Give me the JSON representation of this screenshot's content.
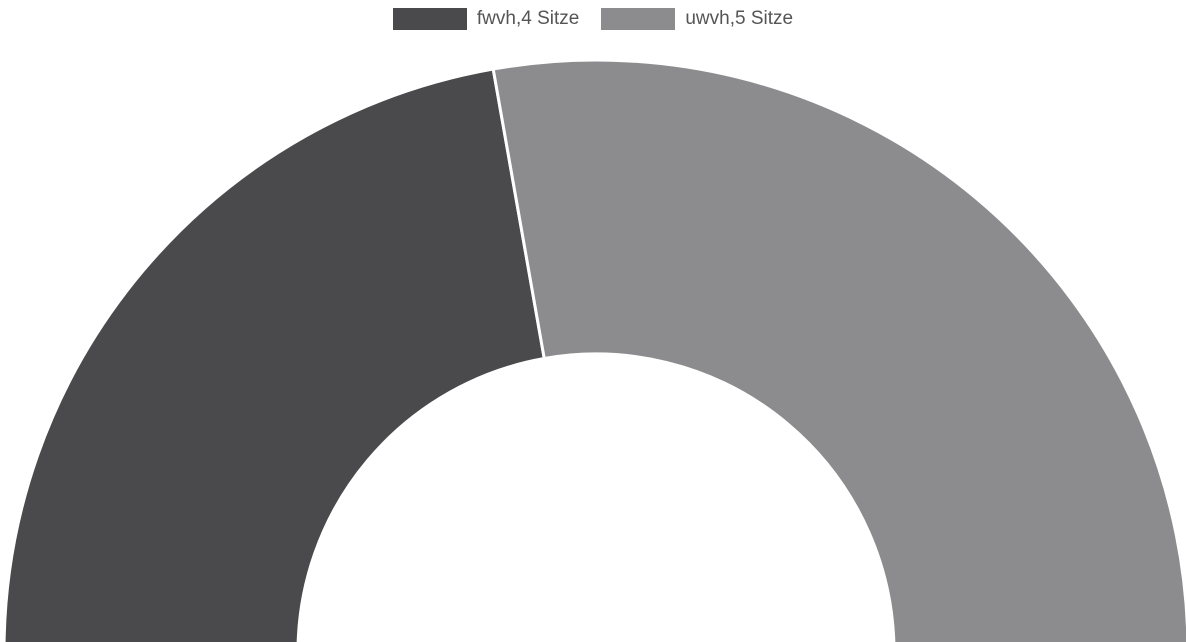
{
  "chart_data": {
    "type": "pie",
    "variant": "half-doughnut",
    "categories": [
      "fwvh,4 Sitze",
      "uwvh,5 Sitze"
    ],
    "values": [
      4,
      5
    ],
    "colors": [
      "#4a4a4c",
      "#8c8c8f"
    ],
    "legend_position": "top"
  }
}
